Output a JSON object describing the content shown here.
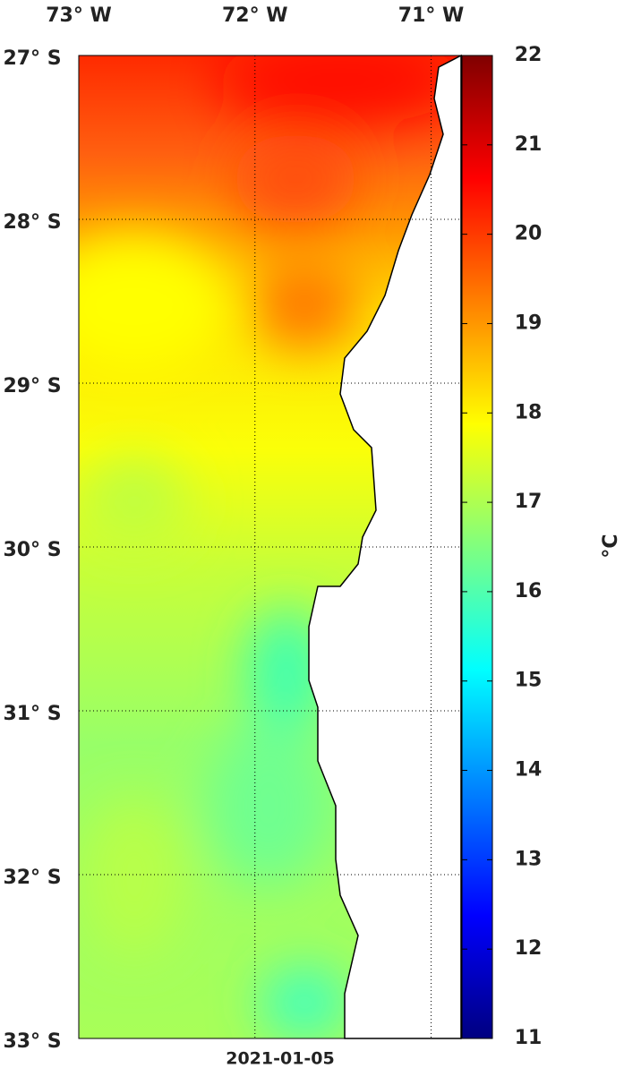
{
  "map": {
    "lon_range": [
      -73,
      -70.83
    ],
    "lat_range": [
      -27,
      -33
    ],
    "lon_ticks": [
      {
        "value": -73,
        "label": "73° W"
      },
      {
        "value": -72,
        "label": "72° W"
      },
      {
        "value": -71,
        "label": "71° W"
      }
    ],
    "lat_ticks": [
      {
        "value": -27,
        "label": "27° S"
      },
      {
        "value": -28,
        "label": "28° S"
      },
      {
        "value": -29,
        "label": "29° S"
      },
      {
        "value": -30,
        "label": "30° S"
      },
      {
        "value": -31,
        "label": "31° S"
      },
      {
        "value": -32,
        "label": "32° S"
      },
      {
        "value": -33,
        "label": "33° S"
      }
    ],
    "date": "2021-01-05",
    "colorbar": {
      "range": [
        11,
        22
      ],
      "ticks": [
        11,
        12,
        13,
        14,
        15,
        16,
        17,
        18,
        19,
        20,
        21,
        22
      ],
      "unit": "°C"
    }
  }
}
